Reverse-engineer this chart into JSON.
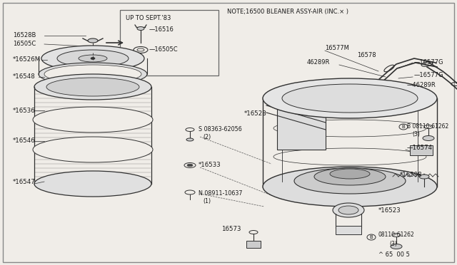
{
  "bg_color": "#f0ede8",
  "line_color": "#303030",
  "text_color": "#1a1a1a",
  "note_text": "NOTE;16500 BLEANER ASSY-AIR (INC.× )",
  "inset_label": "UP TO SEPT.'83",
  "footer": "^ 65  00 5",
  "fig_w": 6.4,
  "fig_h": 3.72,
  "dpi": 100
}
